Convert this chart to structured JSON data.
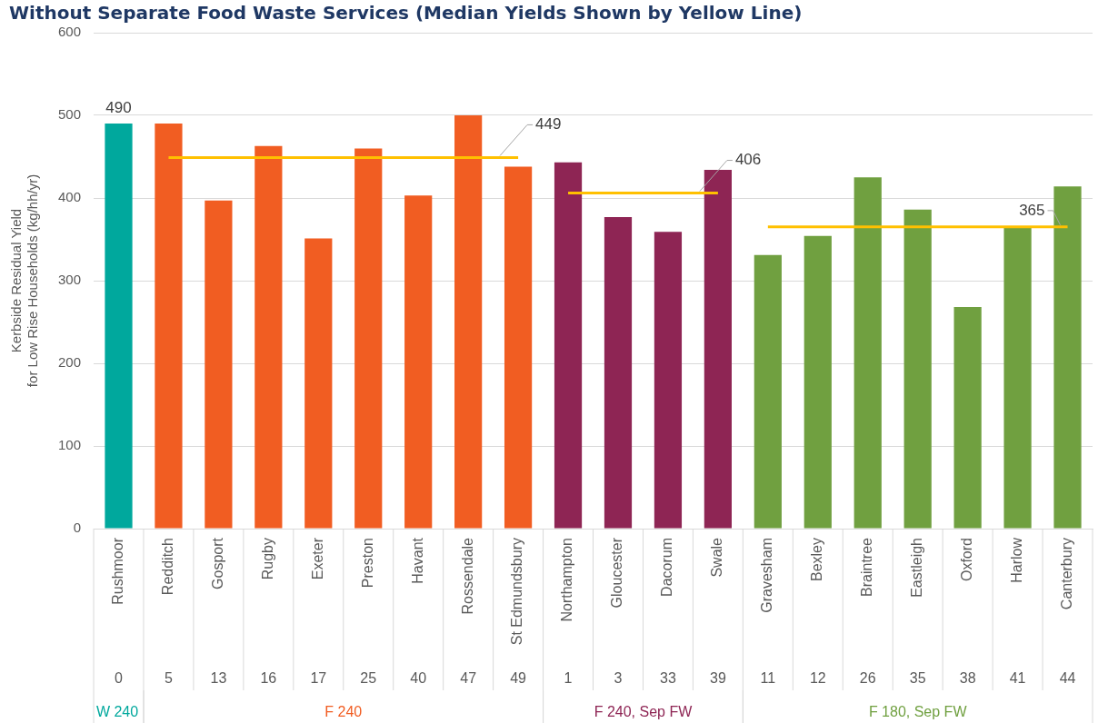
{
  "chart_data": {
    "type": "bar",
    "title": "Without Separate Food Waste Services (Median Yields Shown by Yellow Line)",
    "ylabel": "Kerbside Residual Yield\nfor Low Rise Households (kg/hh/yr)",
    "categories": [
      "Rushmoor",
      "Redditch",
      "Gosport",
      "Rugby",
      "Exeter",
      "Preston",
      "Havant",
      "Rossendale",
      "St Edmundsbury",
      "Northampton",
      "Gloucester",
      "Dacorum",
      "Swale",
      "Gravesham",
      "Bexley",
      "Braintree",
      "Eastleigh",
      "Oxford",
      "Harlow",
      "Canterbury"
    ],
    "series": [
      {
        "name": "W 240",
        "color": "#00a89d",
        "values": [
          490,
          null,
          null,
          null,
          null,
          null,
          null,
          null,
          null,
          null,
          null,
          null,
          null,
          null,
          null,
          null,
          null,
          null,
          null,
          null
        ],
        "value_labels": [
          "490",
          null,
          null,
          null,
          null,
          null,
          null,
          null,
          null,
          null,
          null,
          null,
          null,
          null,
          null,
          null,
          null,
          null,
          null,
          null
        ]
      },
      {
        "name": "F 240",
        "color": "#f15d22",
        "values": [
          null,
          490,
          397,
          463,
          351,
          460,
          403,
          500,
          438,
          null,
          null,
          null,
          null,
          null,
          null,
          null,
          null,
          null,
          null,
          null
        ]
      },
      {
        "name": "F 240, Sep FW",
        "color": "#8e2554",
        "values": [
          null,
          null,
          null,
          null,
          null,
          null,
          null,
          null,
          null,
          443,
          377,
          359,
          434,
          null,
          null,
          null,
          null,
          null,
          null,
          null
        ]
      },
      {
        "name": "F 180, Sep FW",
        "color": "#70a040",
        "values": [
          null,
          null,
          null,
          null,
          null,
          null,
          null,
          null,
          null,
          null,
          null,
          null,
          null,
          331,
          354,
          425,
          386,
          268,
          365,
          414
        ]
      },
      {
        "type": "line",
        "color": "#ffc000",
        "x": [
          "Redditch",
          "St Edmundsbury"
        ],
        "values": [
          449,
          449
        ],
        "value_labels": [
          null,
          "449"
        ]
      },
      {
        "type": "line",
        "color": "#ffc000",
        "x": [
          "Northampton",
          "Swale"
        ],
        "values": [
          406,
          406
        ],
        "value_labels": [
          null,
          "406"
        ]
      },
      {
        "type": "line",
        "color": "#ffc000",
        "x": [
          "Gravesham",
          "Canterbury"
        ],
        "values": [
          365,
          365
        ],
        "value_labels": [
          null,
          "365"
        ]
      }
    ],
    "annotations": [
      "0",
      "5",
      "13",
      "16",
      "17",
      "25",
      "40",
      "47",
      "49",
      "1",
      "3",
      "33",
      "39",
      "11",
      "12",
      "26",
      "35",
      "38",
      "41",
      "44"
    ],
    "ylim": [
      0,
      600
    ],
    "yticks": [
      0,
      100,
      200,
      300,
      400,
      500,
      600
    ],
    "grid": "y",
    "legend": false,
    "marker": "none"
  }
}
